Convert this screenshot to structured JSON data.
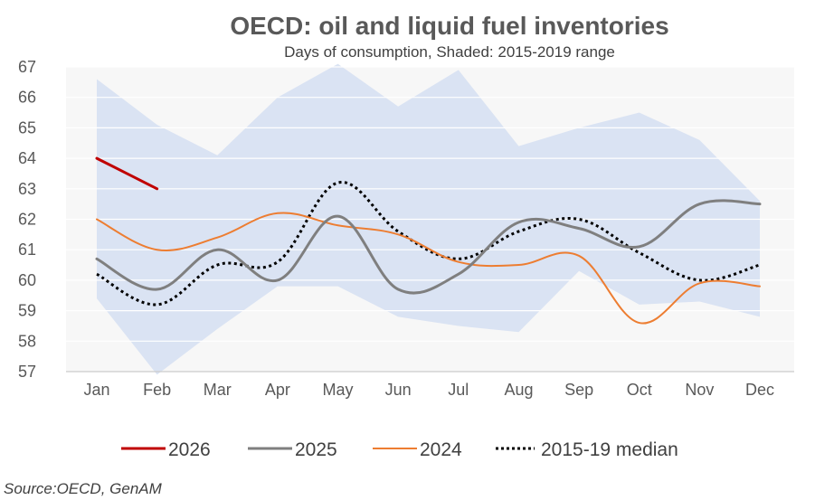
{
  "chart_data": {
    "type": "line",
    "title": "OECD: oil and liquid fuel inventories",
    "subtitle": "Days of consumption, Shaded: 2015-2019 range",
    "categories": [
      "Jan",
      "Feb",
      "Mar",
      "Apr",
      "May",
      "Jun",
      "Jul",
      "Aug",
      "Sep",
      "Oct",
      "Nov",
      "Dec"
    ],
    "ylim": [
      57,
      67
    ],
    "yticks": [
      57,
      58,
      59,
      60,
      61,
      62,
      63,
      64,
      65,
      66,
      67
    ],
    "band": {
      "name": "2015-2019 range",
      "color": "#dae3f3",
      "upper": [
        66.6,
        65.1,
        64.1,
        66.0,
        67.1,
        65.7,
        66.9,
        64.4,
        65.0,
        65.5,
        64.6,
        62.6
      ],
      "lower": [
        59.4,
        56.9,
        58.4,
        59.8,
        59.8,
        58.8,
        58.5,
        58.3,
        60.3,
        59.2,
        59.3,
        58.8
      ]
    },
    "series": [
      {
        "name": "2026",
        "color": "#c00000",
        "style": "solid",
        "values": [
          64.0,
          63.0,
          null,
          null,
          null,
          null,
          null,
          null,
          null,
          null,
          null,
          null
        ]
      },
      {
        "name": "2025",
        "color": "#7f7f7f",
        "style": "solid",
        "values": [
          60.7,
          59.7,
          61.0,
          60.0,
          62.1,
          59.7,
          60.2,
          61.9,
          61.7,
          61.1,
          62.5,
          62.5
        ]
      },
      {
        "name": "2024",
        "color": "#ed7d31",
        "style": "solid",
        "values": [
          62.0,
          61.0,
          61.4,
          62.2,
          61.8,
          61.5,
          60.6,
          60.5,
          60.8,
          58.6,
          59.9,
          59.8
        ]
      },
      {
        "name": "2015-19 median",
        "color": "#000000",
        "style": "dotted",
        "values": [
          60.2,
          59.2,
          60.5,
          60.6,
          63.2,
          61.6,
          60.7,
          61.6,
          62.0,
          60.9,
          60.0,
          60.5
        ]
      }
    ]
  },
  "source": "Source:OECD, GenAM"
}
